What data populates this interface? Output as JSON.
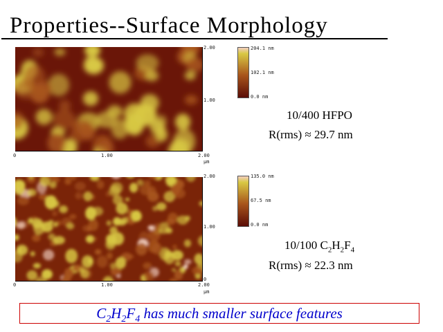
{
  "title": "Properties--Surface Morphology",
  "samples": [
    {
      "name": "10/400 HFPO",
      "rms_prefix": "R(rms) ≈ ",
      "rms_value": "29.7 nm",
      "scale_labels": {
        "top": "204.1 nm",
        "mid": "102.1 nm",
        "bottom": "0.0 nm"
      },
      "axis": {
        "x0": "0",
        "x1": "1.00",
        "x2": "2.00",
        "y_top": "2.00",
        "y_mid": "1.00",
        "unit": "μm"
      }
    },
    {
      "name_parts": {
        "c": "10/100 C",
        "c_sub": "2",
        "h": "H",
        "h_sub": "2",
        "f": "F",
        "f_sub": "4"
      },
      "rms_prefix": "R(rms) ≈ ",
      "rms_value": "22.3 nm",
      "scale_labels": {
        "top": "135.0 nm",
        "mid": "67.5 nm",
        "bottom": "0.0 nm"
      },
      "axis": {
        "x0": "0",
        "x1": "1.00",
        "x2": "2.00",
        "y_top": "2.00",
        "y_mid": "1.00",
        "y_bottom": "0",
        "unit": "μm"
      }
    }
  ],
  "conclusion": {
    "c": "C",
    "c_sub": "2",
    "h": "H",
    "h_sub": "2",
    "f": "F",
    "f_sub": "4",
    "rest": " has much smaller surface features"
  },
  "colors": {
    "rule": "#000000",
    "conclusion_text": "#0000cc",
    "conclusion_border": "#cc0000",
    "afm_low": "#5a0c06",
    "afm_mid": "#a8551c",
    "afm_high": "#d8c844",
    "afm_peak": "#f2cfc0"
  }
}
